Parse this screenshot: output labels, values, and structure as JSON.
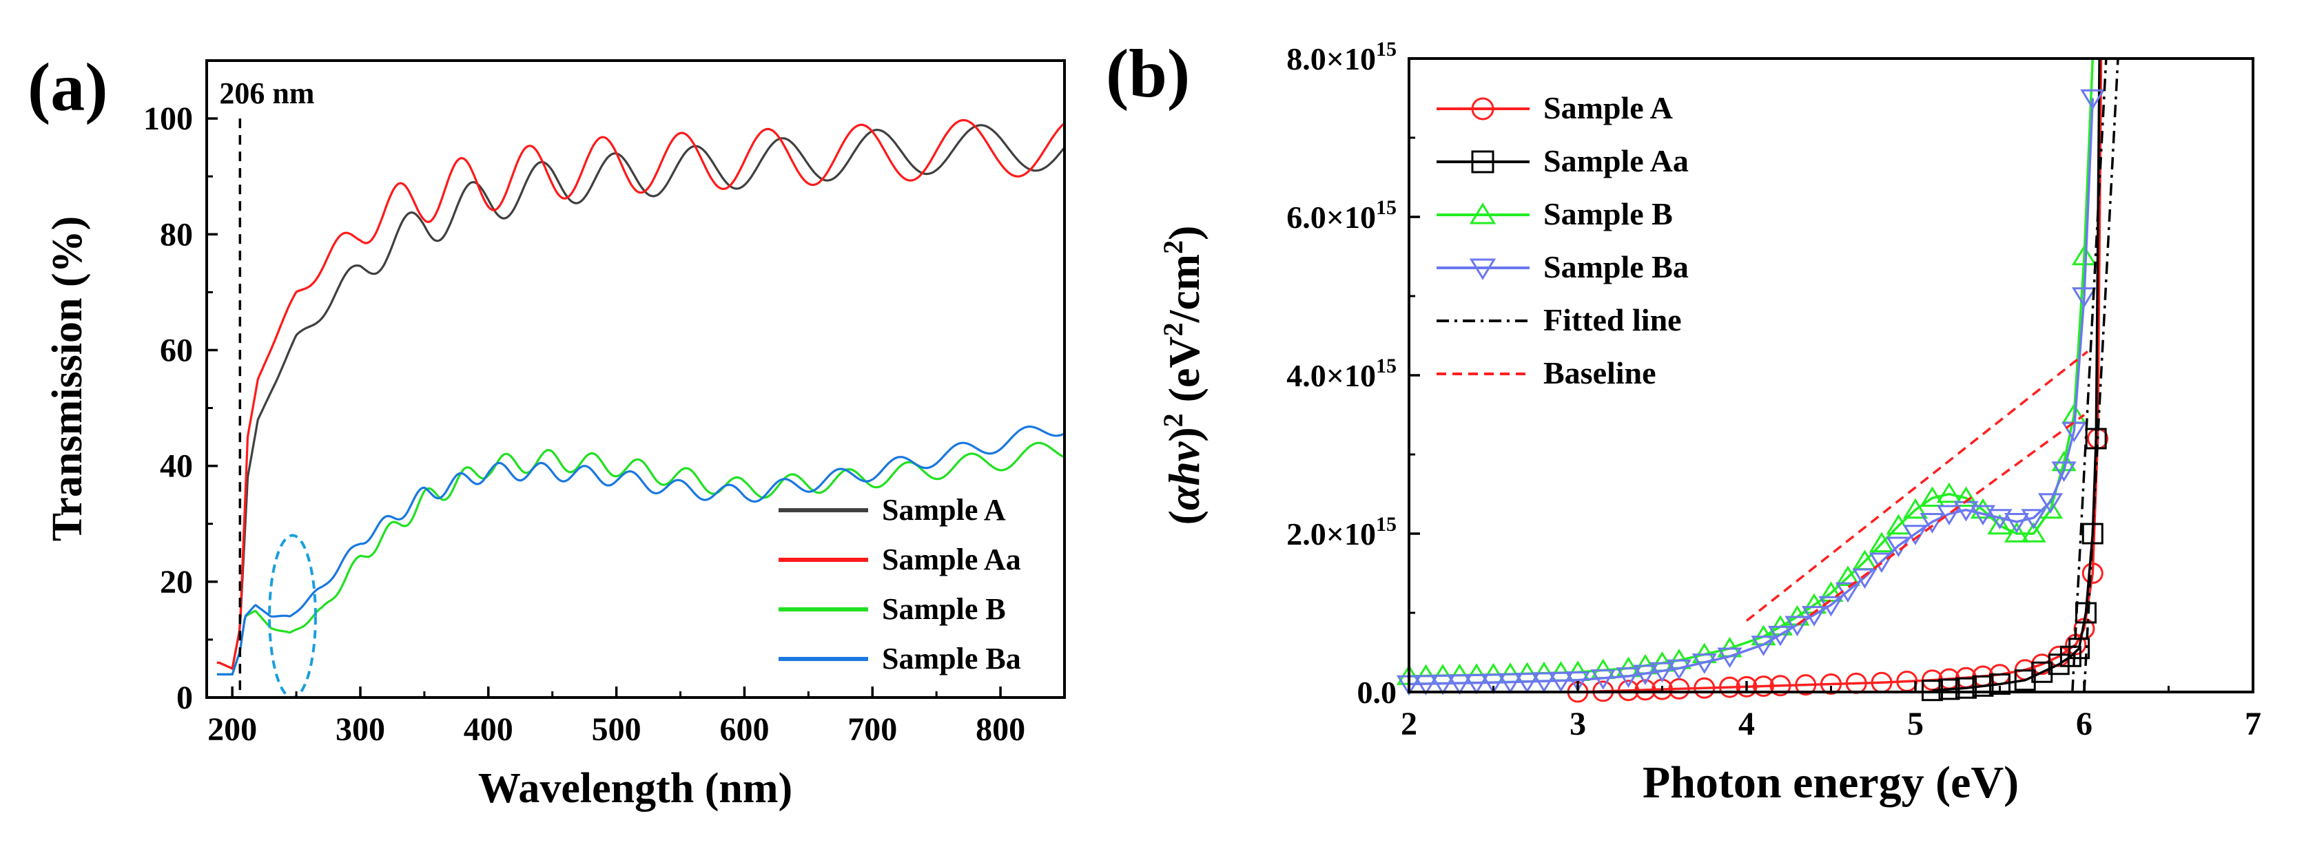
{
  "chart_data": [
    {
      "panel_label": "(a)",
      "type": "line",
      "title": "",
      "xlabel": "Wavelength (nm)",
      "ylabel": "Transmission (%)",
      "xlim": [
        180,
        850
      ],
      "ylim": [
        0,
        110
      ],
      "x_ticks": [
        "200",
        "300",
        "400",
        "500",
        "600",
        "700",
        "800"
      ],
      "y_ticks": [
        "0",
        "20",
        "40",
        "60",
        "80",
        "100"
      ],
      "annotation": "206 nm",
      "cutoff_wavelength_nm": 206,
      "highlight_ellipse": {
        "center_wavelength_nm": 247,
        "center_transmission": 14,
        "half_width_nm": 18,
        "half_height": 14
      },
      "legend_position": "bottom-right",
      "series": [
        {
          "name": "Sample A",
          "color": "#404040",
          "envelope": {
            "x": [
              190,
              200,
              206,
              212,
              220,
              250,
              300,
              350,
              400,
              450,
              500,
              600,
              700,
              800,
              850
            ],
            "y": [
              6,
              5,
              12,
              38,
              48,
              62,
              74,
              82,
              86,
              89,
              90,
              92,
              94,
              95,
              95
            ]
          },
          "fringe_amplitude": 4,
          "fringe_period_nm": 50
        },
        {
          "name": "Sample Aa",
          "color": "#ff1a1a",
          "envelope": {
            "x": [
              190,
              200,
              206,
              212,
              220,
              250,
              300,
              350,
              400,
              450,
              500,
              600,
              700,
              800,
              850
            ],
            "y": [
              6,
              5,
              12,
              45,
              55,
              70,
              81,
              87,
              89,
              91,
              92,
              93,
              94,
              95,
              95
            ]
          },
          "fringe_amplitude": 5,
          "fringe_period_nm": 50
        },
        {
          "name": "Sample B",
          "color": "#22e022",
          "envelope": {
            "x": [
              190,
              200,
              206,
              210,
              218,
              230,
              245,
              270,
              300,
              350,
              400,
              450,
              500,
              550,
              600,
              700,
              800,
              850
            ],
            "y": [
              4,
              4,
              8,
              14,
              15,
              12,
              11,
              15,
              24,
              34,
              40,
              41,
              40,
              38,
              36,
              38,
              41,
              43
            ]
          },
          "fringe_amplitude": 1.8,
          "fringe_period_nm": 30
        },
        {
          "name": "Sample Ba",
          "color": "#1a78e0",
          "envelope": {
            "x": [
              190,
              200,
              206,
              210,
              218,
              230,
              245,
              270,
              300,
              350,
              400,
              450,
              500,
              550,
              600,
              700,
              800,
              850
            ],
            "y": [
              4,
              4,
              8,
              14,
              16,
              14,
              14,
              19,
              27,
              35,
              39,
              39,
              38,
              36,
              35,
              39,
              44,
              47
            ]
          },
          "fringe_amplitude": 1.5,
          "fringe_period_nm": 30
        }
      ]
    },
    {
      "panel_label": "(b)",
      "type": "scatter",
      "title": "",
      "xlabel": "Photon energy (eV)",
      "ylabel_parts": [
        "(",
        "αhν",
        ")",
        "2",
        " (eV",
        "2",
        "/cm",
        "2",
        ")"
      ],
      "xlim": [
        2,
        7
      ],
      "ylim": [
        0,
        8000000000000000.0
      ],
      "x_ticks": [
        "2",
        "3",
        "4",
        "5",
        "6",
        "7"
      ],
      "y_ticks": [
        {
          "mantissa": "0.0",
          "exponent": ""
        },
        {
          "mantissa": "2.0×10",
          "exponent": "15"
        },
        {
          "mantissa": "4.0×10",
          "exponent": "15"
        },
        {
          "mantissa": "6.0×10",
          "exponent": "15"
        },
        {
          "mantissa": "8.0×10",
          "exponent": "15"
        }
      ],
      "legend_position": "top-left",
      "series": [
        {
          "name": "Sample A",
          "color": "#ff2020",
          "marker": "circle",
          "x": [
            3.0,
            3.3,
            3.6,
            3.9,
            4.2,
            4.5,
            4.8,
            5.1,
            5.3,
            5.5,
            5.65,
            5.75,
            5.85,
            5.95,
            6.0,
            6.05,
            6.08,
            6.1
          ],
          "y": [
            0,
            20000000000000.0,
            40000000000000.0,
            60000000000000.0,
            80000000000000.0,
            100000000000000.0,
            120000000000000.0,
            150000000000000.0,
            180000000000000.0,
            220000000000000.0,
            280000000000000.0,
            350000000000000.0,
            450000000000000.0,
            600000000000000.0,
            800000000000000.0,
            1500000000000000.0,
            3200000000000000.0,
            8000000000000000.0
          ]
        },
        {
          "name": "Sample Aa",
          "color": "#000000",
          "marker": "square",
          "x": [
            5.1,
            5.3,
            5.5,
            5.65,
            5.75,
            5.85,
            5.92,
            5.97,
            6.01,
            6.05,
            6.07,
            6.09
          ],
          "y": [
            20000000000000.0,
            50000000000000.0,
            100000000000000.0,
            150000000000000.0,
            250000000000000.0,
            350000000000000.0,
            450000000000000.0,
            550000000000000.0,
            1000000000000000.0,
            2000000000000000.0,
            3200000000000000.0,
            8000000000000000.0
          ]
        },
        {
          "name": "Sample B",
          "color": "#22ee22",
          "marker": "triangle-up",
          "x": [
            2.0,
            2.5,
            3.0,
            3.3,
            3.6,
            3.9,
            4.1,
            4.3,
            4.5,
            4.7,
            4.9,
            5.0,
            5.1,
            5.2,
            5.3,
            5.4,
            5.5,
            5.6,
            5.7,
            5.8,
            5.88,
            5.94,
            6.0,
            6.05
          ],
          "y": [
            200000000000000.0,
            220000000000000.0,
            250000000000000.0,
            300000000000000.0,
            400000000000000.0,
            550000000000000.0,
            700000000000000.0,
            950000000000000.0,
            1250000000000000.0,
            1650000000000000.0,
            2100000000000000.0,
            2300000000000000.0,
            2450000000000000.0,
            2500000000000000.0,
            2450000000000000.0,
            2300000000000000.0,
            2100000000000000.0,
            2000000000000000.0,
            2000000000000000.0,
            2300000000000000.0,
            2900000000000000.0,
            3500000000000000.0,
            5500000000000000.0,
            8000000000000000.0
          ]
        },
        {
          "name": "Sample Ba",
          "color": "#6b78f0",
          "marker": "triangle-down",
          "x": [
            2.0,
            2.5,
            3.0,
            3.3,
            3.6,
            3.9,
            4.1,
            4.3,
            4.5,
            4.7,
            4.9,
            5.0,
            5.1,
            5.2,
            5.3,
            5.4,
            5.5,
            5.6,
            5.7,
            5.8,
            5.88,
            5.94,
            6.0,
            6.05
          ],
          "y": [
            100000000000000.0,
            120000000000000.0,
            150000000000000.0,
            200000000000000.0,
            300000000000000.0,
            450000000000000.0,
            600000000000000.0,
            850000000000000.0,
            1100000000000000.0,
            1450000000000000.0,
            1850000000000000.0,
            2000000000000000.0,
            2150000000000000.0,
            2250000000000000.0,
            2300000000000000.0,
            2250000000000000.0,
            2200000000000000.0,
            2150000000000000.0,
            2200000000000000.0,
            2400000000000000.0,
            2800000000000000.0,
            3300000000000000.0,
            5000000000000000.0,
            7500000000000000.0
          ]
        },
        {
          "name": "Fitted line",
          "color": "#000000",
          "style": "dash-dot",
          "lines": [
            {
              "x": [
                5.93,
                6.13
              ],
              "y": [
                0,
                8000000000000000.0
              ]
            },
            {
              "x": [
                6.0,
                6.2
              ],
              "y": [
                0,
                8000000000000000.0
              ]
            }
          ]
        },
        {
          "name": "Baseline",
          "color": "#ff2020",
          "style": "dashed",
          "lines": [
            {
              "x": [
                4.0,
                6.02
              ],
              "y": [
                900000000000000.0,
                4300000000000000.0
              ]
            },
            {
              "x": [
                4.3,
                6.0
              ],
              "y": [
                850000000000000.0,
                3500000000000000.0
              ]
            }
          ]
        }
      ]
    }
  ]
}
